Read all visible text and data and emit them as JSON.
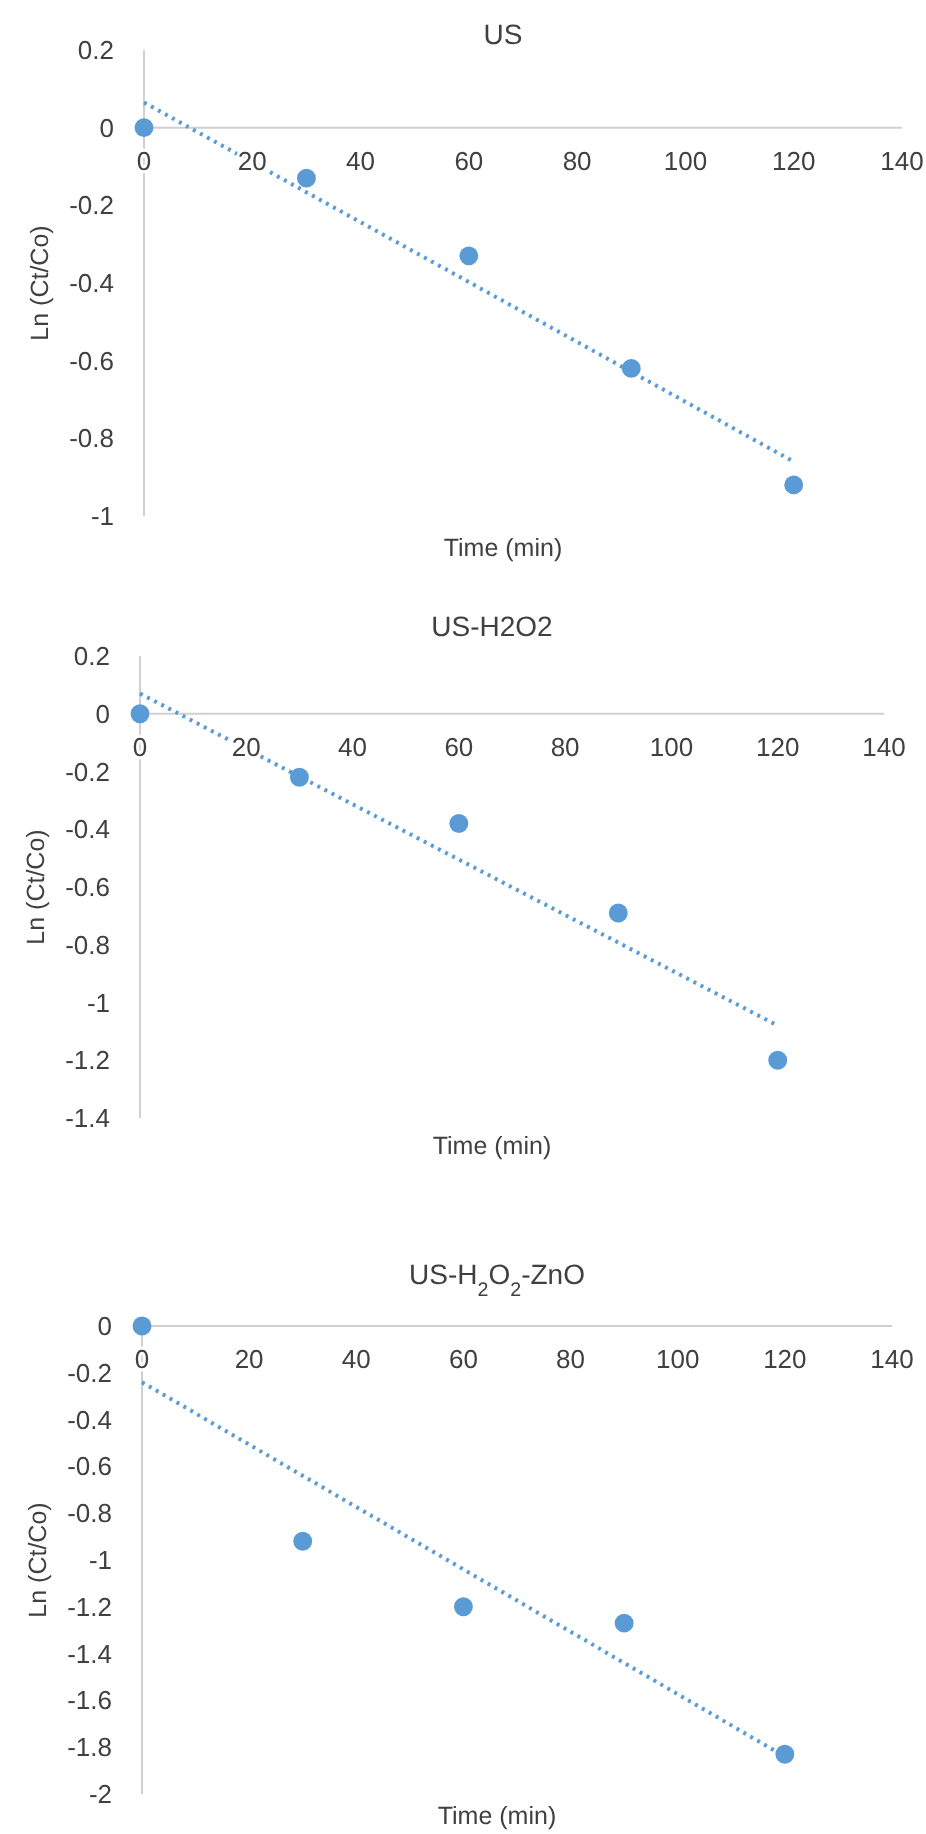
{
  "chart_data": [
    {
      "type": "scatter",
      "title": "US",
      "xlabel": "Time (min)",
      "ylabel": "Ln (Ct/Co)",
      "xlim": [
        0,
        140
      ],
      "xticks": [
        0,
        20,
        40,
        60,
        80,
        100,
        120,
        140
      ],
      "ylim": [
        -1,
        0.2
      ],
      "yticks": [
        -1,
        -0.8,
        -0.6,
        -0.4,
        -0.2,
        0,
        0.2
      ],
      "series": [
        {
          "color": "#5b9bd5",
          "marker": "circle",
          "x": [
            0,
            30,
            60,
            90,
            120
          ],
          "values": [
            0,
            -0.13,
            -0.33,
            -0.62,
            -0.92
          ]
        },
        {
          "type": "line",
          "color": "#5b9bd5",
          "marker": "none",
          "line_style": "dotted",
          "x": [
            0,
            120
          ],
          "values": [
            0.065,
            -0.86
          ]
        }
      ]
    },
    {
      "type": "scatter",
      "title": "US-H2O2",
      "xlabel": "Time (min)",
      "ylabel": "Ln (Ct/Co)",
      "xlim": [
        0,
        140
      ],
      "xticks": [
        0,
        20,
        40,
        60,
        80,
        100,
        120,
        140
      ],
      "ylim": [
        -1.4,
        0.2
      ],
      "yticks": [
        -1.4,
        -1.2,
        -1,
        -0.8,
        -0.6,
        -0.4,
        -0.2,
        0,
        0.2
      ],
      "series": [
        {
          "color": "#5b9bd5",
          "marker": "circle",
          "x": [
            0,
            30,
            60,
            90,
            120
          ],
          "values": [
            0,
            -0.22,
            -0.38,
            -0.69,
            -1.2
          ]
        },
        {
          "type": "line",
          "color": "#5b9bd5",
          "marker": "none",
          "line_style": "dotted",
          "x": [
            0,
            120
          ],
          "values": [
            0.07,
            -1.08
          ]
        }
      ]
    },
    {
      "type": "scatter",
      "title": "US-H$_{2}$O$_{2}$-ZnO",
      "xlabel": "Time (min)",
      "ylabel": "Ln (Ct/Co)",
      "xlim": [
        0,
        140
      ],
      "xticks": [
        0,
        20,
        40,
        60,
        80,
        100,
        120,
        140
      ],
      "ylim": [
        -2,
        0
      ],
      "yticks": [
        -2,
        -1.8,
        -1.6,
        -1.4,
        -1.2,
        -1,
        -0.8,
        -0.6,
        -0.4,
        -0.2,
        0
      ],
      "series": [
        {
          "color": "#5b9bd5",
          "marker": "circle",
          "x": [
            0,
            30,
            60,
            90,
            120
          ],
          "values": [
            0,
            -0.92,
            -1.2,
            -1.27,
            -1.83
          ]
        },
        {
          "type": "line",
          "color": "#5b9bd5",
          "marker": "none",
          "line_style": "dotted",
          "x": [
            0,
            120
          ],
          "values": [
            -0.24,
            -1.84
          ]
        }
      ]
    }
  ]
}
